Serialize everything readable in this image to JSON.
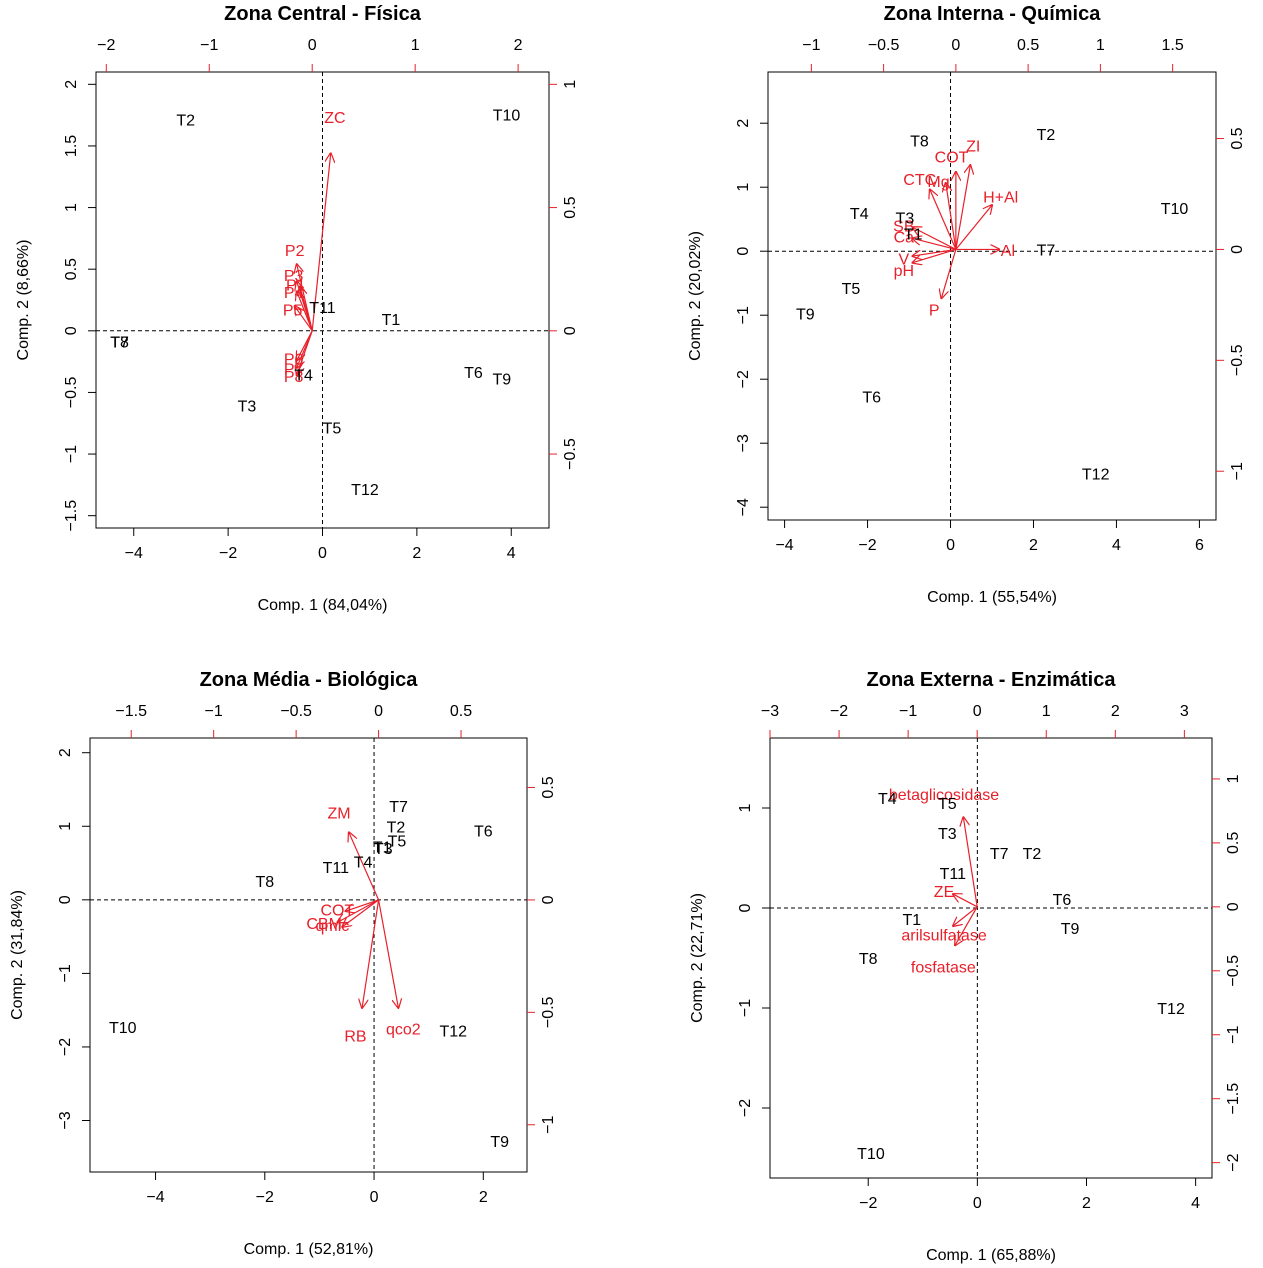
{
  "colors": {
    "obs": "#000000",
    "var": "#e8202a",
    "box": "#000000"
  },
  "chart_data": [
    {
      "type": "scatter",
      "title": "Zona Central - Física",
      "xlabel": "Comp. 1 (84,04%)",
      "ylabel": "Comp. 2 (8,66%)",
      "xlim": [
        -4.8,
        4.8
      ],
      "ylim": [
        -1.6,
        2.1
      ],
      "xticks": [
        -4,
        -2,
        0,
        2,
        4
      ],
      "yticks": [
        -1.5,
        -1.0,
        -0.5,
        0.0,
        0.5,
        1.0,
        1.5,
        2.0
      ],
      "ylim_top": [
        -2.1,
        2.3
      ],
      "top_ticks": [
        -2,
        -1,
        0,
        1,
        2
      ],
      "xlim_right": [
        -0.8,
        1.05
      ],
      "right_ticks": [
        -0.5,
        0.0,
        0.5,
        1.0
      ],
      "observations": [
        {
          "label": "T2",
          "x": -2.9,
          "y": 1.7
        },
        {
          "label": "T10",
          "x": 3.9,
          "y": 1.74
        },
        {
          "label": "T11",
          "x": 0.0,
          "y": 0.18
        },
        {
          "label": "T1",
          "x": 1.45,
          "y": 0.08
        },
        {
          "label": "T7",
          "x": -4.3,
          "y": -0.1
        },
        {
          "label": "T8",
          "x": -4.3,
          "y": -0.1
        },
        {
          "label": "T4",
          "x": -0.4,
          "y": -0.37
        },
        {
          "label": "T6",
          "x": 3.2,
          "y": -0.35
        },
        {
          "label": "T9",
          "x": 3.8,
          "y": -0.4
        },
        {
          "label": "T3",
          "x": -1.6,
          "y": -0.62
        },
        {
          "label": "T5",
          "x": 0.2,
          "y": -0.8
        },
        {
          "label": "T12",
          "x": 0.9,
          "y": -1.3
        }
      ],
      "loadings": [
        {
          "label": "ZC",
          "x": 0.18,
          "y": 0.72,
          "lx": 0.22,
          "ly": 0.86
        },
        {
          "label": "P2",
          "x": -0.15,
          "y": 0.27,
          "lx": -0.17,
          "ly": 0.32
        },
        {
          "label": "P3",
          "x": -0.15,
          "y": 0.2,
          "lx": -0.18,
          "ly": 0.22
        },
        {
          "label": "P1",
          "x": -0.12,
          "y": 0.18,
          "lx": -0.16,
          "ly": 0.18
        },
        {
          "label": "P4",
          "x": -0.15,
          "y": 0.16,
          "lx": -0.18,
          "ly": 0.15
        },
        {
          "label": "P5",
          "x": -0.17,
          "y": 0.1,
          "lx": -0.19,
          "ly": 0.08
        },
        {
          "label": "P6",
          "x": -0.15,
          "y": -0.12,
          "lx": -0.18,
          "ly": -0.12
        },
        {
          "label": "P7",
          "x": -0.15,
          "y": -0.15,
          "lx": -0.18,
          "ly": -0.16
        },
        {
          "label": "P8",
          "x": -0.15,
          "y": -0.18,
          "lx": -0.18,
          "ly": -0.19
        }
      ]
    },
    {
      "type": "scatter",
      "title": "Zona Interna - Química",
      "xlabel": "Comp. 1 (55,54%)",
      "ylabel": "Comp. 2 (20,02%)",
      "xlim": [
        -4.4,
        6.4
      ],
      "ylim": [
        -4.2,
        2.8
      ],
      "xticks": [
        -4,
        -2,
        0,
        2,
        4,
        6
      ],
      "yticks": [
        -4,
        -3,
        -2,
        -1,
        0,
        1,
        2
      ],
      "ylim_top": [
        -1.3,
        1.8
      ],
      "top_ticks": [
        -1.0,
        -0.5,
        0.0,
        0.5,
        1.0,
        1.5
      ],
      "xlim_right": [
        -1.22,
        0.8
      ],
      "right_ticks": [
        -1.0,
        -0.5,
        0.0,
        0.5
      ],
      "observations": [
        {
          "label": "T2",
          "x": 2.3,
          "y": 1.8
        },
        {
          "label": "T10",
          "x": 5.4,
          "y": 0.65
        },
        {
          "label": "T7",
          "x": 2.3,
          "y": 0.0
        },
        {
          "label": "T4",
          "x": -2.2,
          "y": 0.57
        },
        {
          "label": "T3",
          "x": -1.1,
          "y": 0.5
        },
        {
          "label": "T1",
          "x": -0.9,
          "y": 0.25
        },
        {
          "label": "T5",
          "x": -2.4,
          "y": -0.6
        },
        {
          "label": "T9",
          "x": -3.5,
          "y": -1.0
        },
        {
          "label": "T6",
          "x": -1.9,
          "y": -2.3
        },
        {
          "label": "T12",
          "x": 3.5,
          "y": -3.5
        },
        {
          "label": "T8",
          "x": -0.75,
          "y": 1.7
        }
      ],
      "loadings": [
        {
          "label": "ZI",
          "x": 0.1,
          "y": 0.38,
          "lx": 0.12,
          "ly": 0.46
        },
        {
          "label": "COT",
          "x": 0.0,
          "y": 0.35,
          "lx": -0.03,
          "ly": 0.41
        },
        {
          "label": "Mg",
          "x": -0.07,
          "y": 0.3,
          "lx": -0.12,
          "ly": 0.3
        },
        {
          "label": "CTC",
          "x": -0.18,
          "y": 0.27,
          "lx": -0.25,
          "ly": 0.31
        },
        {
          "label": "H+Al",
          "x": 0.25,
          "y": 0.2,
          "lx": 0.31,
          "ly": 0.23
        },
        {
          "label": "SB",
          "x": -0.3,
          "y": 0.1,
          "lx": -0.36,
          "ly": 0.1
        },
        {
          "label": "Ca",
          "x": -0.3,
          "y": 0.05,
          "lx": -0.36,
          "ly": 0.05
        },
        {
          "label": "Al",
          "x": 0.3,
          "y": 0.0,
          "lx": 0.36,
          "ly": -0.01
        },
        {
          "label": "V",
          "x": -0.3,
          "y": -0.03,
          "lx": -0.36,
          "ly": -0.05
        },
        {
          "label": "pH",
          "x": -0.3,
          "y": -0.06,
          "lx": -0.36,
          "ly": -0.1
        },
        {
          "label": "P",
          "x": -0.1,
          "y": -0.22,
          "lx": -0.15,
          "ly": -0.28
        }
      ]
    },
    {
      "type": "scatter",
      "title": "Zona Média - Biológica",
      "xlabel": "Comp. 1 (52,81%)",
      "ylabel": "Comp. 2 (31,84%)",
      "xlim": [
        -5.2,
        2.8
      ],
      "ylim": [
        -3.7,
        2.2
      ],
      "xticks": [
        -4,
        -2,
        0,
        2
      ],
      "yticks": [
        -3,
        -2,
        -1,
        0,
        1,
        2
      ],
      "ylim_top": [
        -1.75,
        0.9
      ],
      "top_ticks": [
        -1.5,
        -1.0,
        -0.5,
        0.0,
        0.5
      ],
      "xlim_right": [
        -1.21,
        0.72
      ],
      "right_ticks": [
        -1.0,
        -0.5,
        0.0,
        0.5
      ],
      "observations": [
        {
          "label": "T7",
          "x": 0.45,
          "y": 1.25
        },
        {
          "label": "T2",
          "x": 0.4,
          "y": 0.97
        },
        {
          "label": "T6",
          "x": 2.0,
          "y": 0.92
        },
        {
          "label": "T5",
          "x": 0.42,
          "y": 0.78
        },
        {
          "label": "T3",
          "x": 0.17,
          "y": 0.68
        },
        {
          "label": "T1",
          "x": 0.15,
          "y": 0.7
        },
        {
          "label": "T4",
          "x": -0.2,
          "y": 0.5
        },
        {
          "label": "T11",
          "x": -0.7,
          "y": 0.42
        },
        {
          "label": "T8",
          "x": -2.0,
          "y": 0.23
        },
        {
          "label": "T10",
          "x": -4.6,
          "y": -1.75
        },
        {
          "label": "T12",
          "x": 1.45,
          "y": -1.8
        },
        {
          "label": "T9",
          "x": 2.3,
          "y": -3.3
        }
      ],
      "loadings": [
        {
          "label": "ZM",
          "x": -0.18,
          "y": 0.3,
          "lx": -0.24,
          "ly": 0.38
        },
        {
          "label": "COT",
          "x": -0.2,
          "y": -0.05,
          "lx": -0.25,
          "ly": -0.05
        },
        {
          "label": "CBM",
          "x": -0.25,
          "y": -0.1,
          "lx": -0.33,
          "ly": -0.11
        },
        {
          "label": "qmic",
          "x": -0.22,
          "y": -0.12,
          "lx": -0.28,
          "ly": -0.12
        },
        {
          "label": "RB",
          "x": -0.1,
          "y": -0.48,
          "lx": -0.14,
          "ly": -0.61
        },
        {
          "label": "qco2",
          "x": 0.12,
          "y": -0.48,
          "lx": 0.15,
          "ly": -0.58
        }
      ]
    },
    {
      "type": "scatter",
      "title": "Zona Externa - Enzimática",
      "xlabel": "Comp. 1 (65,88%)",
      "ylabel": "Comp. 2 (22,71%)",
      "xlim": [
        -3.8,
        4.3
      ],
      "ylim": [
        -2.7,
        1.7
      ],
      "xticks": [
        -2,
        0,
        2,
        4
      ],
      "yticks": [
        -2,
        -1,
        0,
        1
      ],
      "ylim_top": [
        -3.0,
        3.4
      ],
      "top_ticks": [
        -3,
        -2,
        -1,
        0,
        1,
        2,
        3
      ],
      "xlim_right": [
        -2.12,
        1.32
      ],
      "right_ticks": [
        -2.0,
        -1.5,
        -1.0,
        -0.5,
        0.0,
        0.5,
        1.0
      ],
      "observations": [
        {
          "label": "T4",
          "x": -1.65,
          "y": 1.08
        },
        {
          "label": "T5",
          "x": -0.55,
          "y": 1.03
        },
        {
          "label": "T3",
          "x": -0.55,
          "y": 0.73
        },
        {
          "label": "T7",
          "x": 0.4,
          "y": 0.53
        },
        {
          "label": "T2",
          "x": 1.0,
          "y": 0.53
        },
        {
          "label": "T11",
          "x": -0.45,
          "y": 0.33
        },
        {
          "label": "T6",
          "x": 1.55,
          "y": 0.07
        },
        {
          "label": "T9",
          "x": 1.7,
          "y": -0.22
        },
        {
          "label": "T1",
          "x": -1.2,
          "y": -0.13
        },
        {
          "label": "T8",
          "x": -2.0,
          "y": -0.52
        },
        {
          "label": "T12",
          "x": 3.55,
          "y": -1.02
        },
        {
          "label": "T10",
          "x": -1.95,
          "y": -2.47
        }
      ],
      "loadings": [
        {
          "label": "betaglicosidase",
          "x": -0.2,
          "y": 0.7,
          "lx": -0.48,
          "ly": 0.87
        },
        {
          "label": "ZE",
          "x": -0.35,
          "y": 0.1,
          "lx": -0.48,
          "ly": 0.11
        },
        {
          "label": "arilsulfatase",
          "x": -0.35,
          "y": -0.15,
          "lx": -0.48,
          "ly": -0.23
        },
        {
          "label": "fosfatase",
          "x": -0.32,
          "y": -0.3,
          "lx": -0.49,
          "ly": -0.48
        }
      ]
    }
  ]
}
